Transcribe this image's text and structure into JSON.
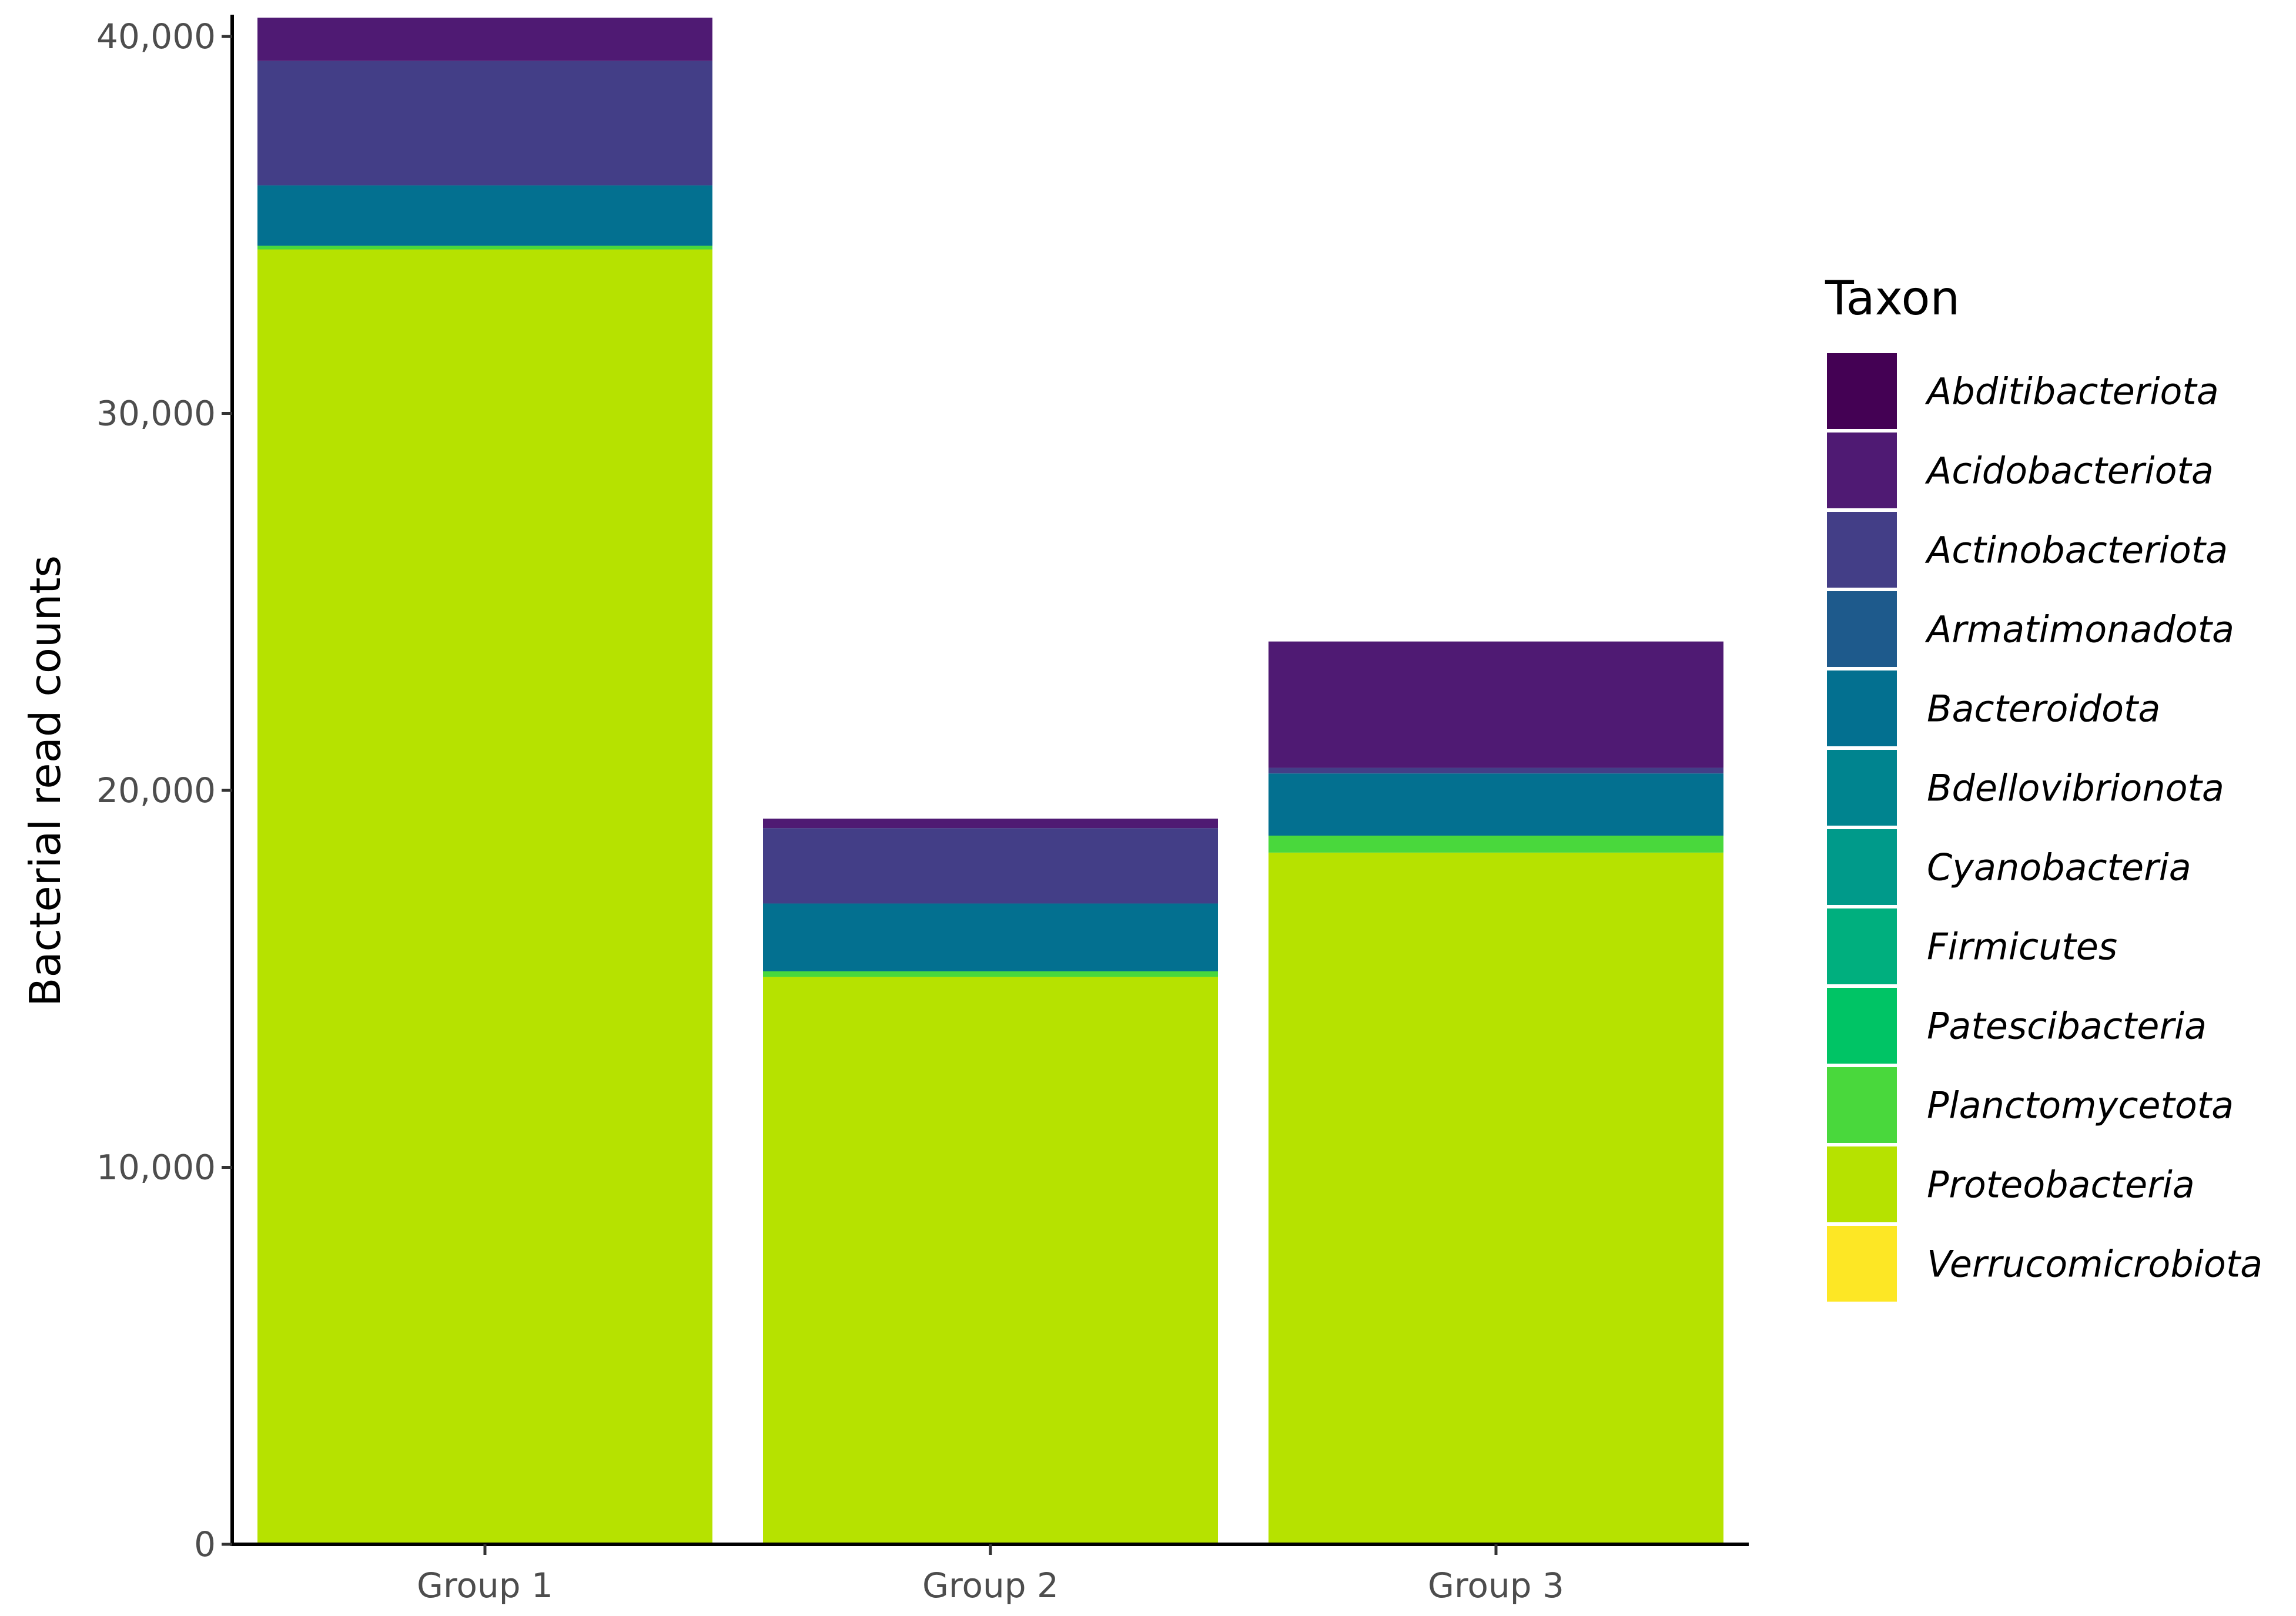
{
  "chart_data": {
    "type": "bar",
    "stacked": true,
    "categories": [
      "Group 1",
      "Group 2",
      "Group 3"
    ],
    "ylabel": "Bacterial read counts",
    "xlabel": "",
    "ylim": [
      0,
      40500
    ],
    "yticks": [
      0,
      10000,
      20000,
      30000,
      40000
    ],
    "ytick_labels": [
      "0",
      "10,000",
      "20,000",
      "30,000",
      "40,000"
    ],
    "grid": false,
    "legend": {
      "title": "Taxon",
      "position": "right"
    },
    "series": [
      {
        "name": "Abditibacteriota",
        "color": "#440154",
        "values": [
          0,
          0,
          0
        ]
      },
      {
        "name": "Acidobacteriota",
        "color": "#4F1A73",
        "values": [
          1150,
          250,
          3350
        ]
      },
      {
        "name": "Actinobacteriota",
        "color": "#433E87",
        "values": [
          3300,
          2000,
          150
        ]
      },
      {
        "name": "Armatimonadota",
        "color": "#1E5A8C",
        "values": [
          0,
          0,
          0
        ]
      },
      {
        "name": "Bacteroidota",
        "color": "#037090",
        "values": [
          1600,
          1800,
          1650
        ]
      },
      {
        "name": "Bdellovibrionota",
        "color": "#00848F",
        "values": [
          0,
          0,
          0
        ]
      },
      {
        "name": "Cyanobacteria",
        "color": "#009A8A",
        "values": [
          0,
          0,
          0
        ]
      },
      {
        "name": "Firmicutes",
        "color": "#00AF7E",
        "values": [
          0,
          0,
          0
        ]
      },
      {
        "name": "Patescibacteria",
        "color": "#00C465",
        "values": [
          0,
          0,
          0
        ]
      },
      {
        "name": "Planctomycetota",
        "color": "#49D83C",
        "values": [
          100,
          150,
          450
        ]
      },
      {
        "name": "Proteobacteria",
        "color": "#B6E200",
        "values": [
          34350,
          15050,
          18350
        ]
      },
      {
        "name": "Verrucomicrobiota",
        "color": "#FDE725",
        "values": [
          0,
          0,
          0
        ]
      }
    ]
  }
}
